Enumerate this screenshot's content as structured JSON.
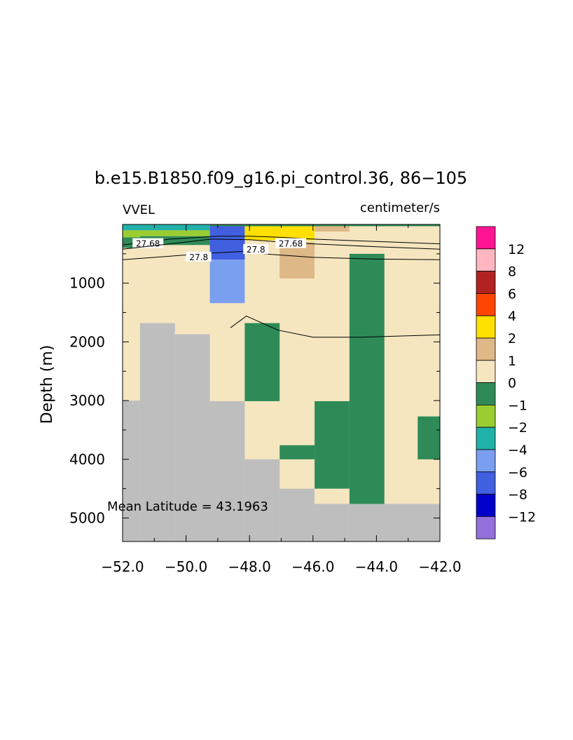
{
  "chart_data": {
    "type": "heatmap",
    "title": "b.e15.B1850.f09_g16.pi_control.36, 86−105",
    "variable": "VVEL",
    "units": "centimeter/s",
    "ylabel": "Depth (m)",
    "xlabel": "",
    "xlim": [
      -52,
      -42
    ],
    "ylim": [
      5400,
      0
    ],
    "xticks": [
      -52,
      -50,
      -48,
      -46,
      -44,
      -42
    ],
    "xtick_labels": [
      "−52.0",
      "−50.0",
      "−48.0",
      "−46.0",
      "−44.0",
      "−42.0"
    ],
    "yticks": [
      1000,
      2000,
      3000,
      4000,
      5000
    ],
    "ytick_labels": [
      "1000",
      "2000",
      "3000",
      "4000",
      "5000"
    ],
    "annotation": "Mean Latitude = 43.1963",
    "background_class": "0to1",
    "colorbar": {
      "labels": [
        "12",
        "8",
        "6",
        "4",
        "2",
        "1",
        "0",
        "−1",
        "−2",
        "−4",
        "−6",
        "−8",
        "−12"
      ],
      "colors": [
        "#ff1493",
        "#ffb6c1",
        "#b22222",
        "#ff4500",
        "#ffe000",
        "#deb887",
        "#f5e6c0",
        "#2e8b57",
        "#9acd32",
        "#20b2aa",
        "#7b9ff0",
        "#4060e0",
        "#0000c8",
        "#9370db"
      ]
    },
    "classes": {
      "land": "#bebebe",
      "0to1": "#f5e6c0",
      "1to2": "#deb887",
      "2to4": "#ffe000",
      "m1to0": "#2e8b57",
      "m2tom1": "#9acd32",
      "m4tom2": "#20b2aa",
      "m6tom4": "#7b9ff0",
      "m8tom6": "#4060e0"
    },
    "cells": [
      {
        "x0": -52.0,
        "x1": -51.45,
        "z0": 3000,
        "z1": 5400,
        "c": "land"
      },
      {
        "x0": -51.45,
        "x1": -50.35,
        "z0": 1680,
        "z1": 5400,
        "c": "land"
      },
      {
        "x0": -50.35,
        "x1": -49.25,
        "z0": 1870,
        "z1": 5400,
        "c": "land"
      },
      {
        "x0": -49.25,
        "x1": -48.15,
        "z0": 3010,
        "z1": 5400,
        "c": "land"
      },
      {
        "x0": -48.15,
        "x1": -47.05,
        "z0": 4000,
        "z1": 5400,
        "c": "land"
      },
      {
        "x0": -47.05,
        "x1": -45.95,
        "z0": 4500,
        "z1": 5400,
        "c": "land"
      },
      {
        "x0": -45.95,
        "x1": -44.85,
        "z0": 4760,
        "z1": 5400,
        "c": "land"
      },
      {
        "x0": -44.85,
        "x1": -42.0,
        "z0": 4760,
        "z1": 5400,
        "c": "land"
      },
      {
        "x0": -49.25,
        "x1": -48.15,
        "z0": 0,
        "z1": 600,
        "c": "m8tom6"
      },
      {
        "x0": -49.25,
        "x1": -48.15,
        "z0": 600,
        "z1": 1340,
        "c": "m6tom4"
      },
      {
        "x0": -48.15,
        "x1": -47.05,
        "z0": 1680,
        "z1": 3010,
        "c": "m1to0"
      },
      {
        "x0": -48.15,
        "x1": -45.95,
        "z0": 0,
        "z1": 270,
        "c": "2to4"
      },
      {
        "x0": -47.05,
        "x1": -45.95,
        "z0": 300,
        "z1": 920,
        "c": "1to2"
      },
      {
        "x0": -45.95,
        "x1": -44.85,
        "z0": 0,
        "z1": 120,
        "c": "1to2"
      },
      {
        "x0": -44.85,
        "x1": -43.75,
        "z0": 500,
        "z1": 4760,
        "c": "m1to0"
      },
      {
        "x0": -45.95,
        "x1": -44.85,
        "z0": 3010,
        "z1": 4500,
        "c": "m1to0"
      },
      {
        "x0": -47.05,
        "x1": -45.95,
        "z0": 3760,
        "z1": 4000,
        "c": "m1to0"
      },
      {
        "x0": -42.7,
        "x1": -42.0,
        "z0": 3270,
        "z1": 4000,
        "c": "m1to0"
      },
      {
        "x0": -52.0,
        "x1": -49.25,
        "z0": 0,
        "z1": 100,
        "c": "m4tom2"
      },
      {
        "x0": -52.0,
        "x1": -51.45,
        "z0": 100,
        "z1": 220,
        "c": "m2tom1"
      },
      {
        "x0": -51.45,
        "x1": -49.25,
        "z0": 100,
        "z1": 200,
        "c": "m2tom1"
      },
      {
        "x0": -52.0,
        "x1": -51.45,
        "z0": 220,
        "z1": 400,
        "c": "m1to0"
      },
      {
        "x0": -51.45,
        "x1": -49.25,
        "z0": 200,
        "z1": 350,
        "c": "m1to0"
      },
      {
        "x0": -49.25,
        "x1": -42.0,
        "z0": 0,
        "z1": 30,
        "c": "m1to0"
      }
    ],
    "contours": [
      {
        "label": "27.68",
        "label_at": [
          -51.2,
          330
        ],
        "points": [
          [
            -52,
            350
          ],
          [
            -50.5,
            250
          ],
          [
            -49,
            200
          ],
          [
            -48,
            200
          ],
          [
            -47,
            220
          ],
          [
            -46,
            250
          ],
          [
            -44,
            290
          ],
          [
            -42,
            330
          ]
        ]
      },
      {
        "label": "27.68",
        "label_at": [
          -46.7,
          330
        ],
        "points": [
          [
            -52,
            420
          ],
          [
            -50.5,
            330
          ],
          [
            -49.2,
            250
          ],
          [
            -48,
            260
          ],
          [
            -47,
            300
          ],
          [
            -46,
            330
          ],
          [
            -44,
            380
          ],
          [
            -42,
            420
          ]
        ]
      },
      {
        "label": "27.8",
        "label_at": [
          -49.6,
          560
        ],
        "points": [
          [
            -52,
            600
          ],
          [
            -50.5,
            540
          ],
          [
            -49.3,
            490
          ],
          [
            -48.2,
            460
          ],
          [
            -47.3,
            510
          ],
          [
            -46,
            560
          ],
          [
            -44,
            590
          ],
          [
            -42,
            600
          ]
        ]
      },
      {
        "label": "27.8",
        "label_at": [
          -47.8,
          430
        ],
        "points": []
      },
      {
        "label": "",
        "label_at": null,
        "points": [
          [
            -48.6,
            1760
          ],
          [
            -48.1,
            1560
          ],
          [
            -47.1,
            1800
          ],
          [
            -46,
            1920
          ],
          [
            -44.5,
            1920
          ],
          [
            -42,
            1880
          ]
        ]
      }
    ]
  }
}
